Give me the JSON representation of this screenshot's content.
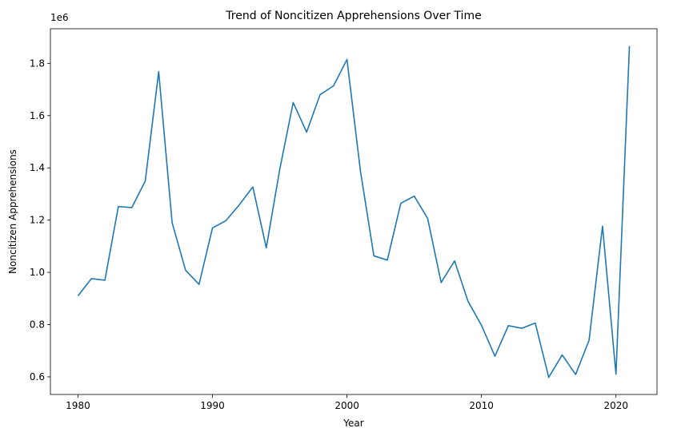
{
  "chart_data": {
    "type": "line",
    "title": "Trend of Noncitizen Apprehensions Over Time",
    "xlabel": "Year",
    "ylabel": "Noncitizen Apprehensions",
    "y_offset_label": "1e6",
    "xlim": [
      1977.95,
      2023.05
    ],
    "ylim": [
      0.5325,
      1.9325
    ],
    "x_ticks": [
      1980,
      1990,
      2000,
      2010,
      2020
    ],
    "x_tick_labels": [
      "1980",
      "1990",
      "2000",
      "2010",
      "2020"
    ],
    "y_ticks": [
      0.6,
      0.8,
      1.0,
      1.2,
      1.4,
      1.6,
      1.8
    ],
    "y_tick_labels": [
      "0.6",
      "0.8",
      "1.0",
      "1.2",
      "1.4",
      "1.6",
      "1.8"
    ],
    "grid": false,
    "legend": false,
    "series": [
      {
        "color": "#1f77b4",
        "x": [
          1980,
          1981,
          1982,
          1983,
          1984,
          1985,
          1986,
          1987,
          1988,
          1989,
          1990,
          1991,
          1992,
          1993,
          1994,
          1995,
          1996,
          1997,
          1998,
          1999,
          2000,
          2001,
          2002,
          2003,
          2004,
          2005,
          2006,
          2007,
          2008,
          2009,
          2010,
          2011,
          2012,
          2013,
          2014,
          2015,
          2016,
          2017,
          2018,
          2019,
          2020,
          2021
        ],
        "y": [
          0.91,
          0.976,
          0.97,
          1.252,
          1.248,
          1.349,
          1.768,
          1.19,
          1.008,
          0.954,
          1.17,
          1.198,
          1.259,
          1.327,
          1.094,
          1.394,
          1.65,
          1.537,
          1.68,
          1.714,
          1.815,
          1.388,
          1.063,
          1.047,
          1.264,
          1.292,
          1.206,
          0.961,
          1.044,
          0.889,
          0.797,
          0.679,
          0.796,
          0.786,
          0.806,
          0.598,
          0.684,
          0.609,
          0.74,
          1.177,
          0.61,
          1.866
        ]
      }
    ]
  }
}
